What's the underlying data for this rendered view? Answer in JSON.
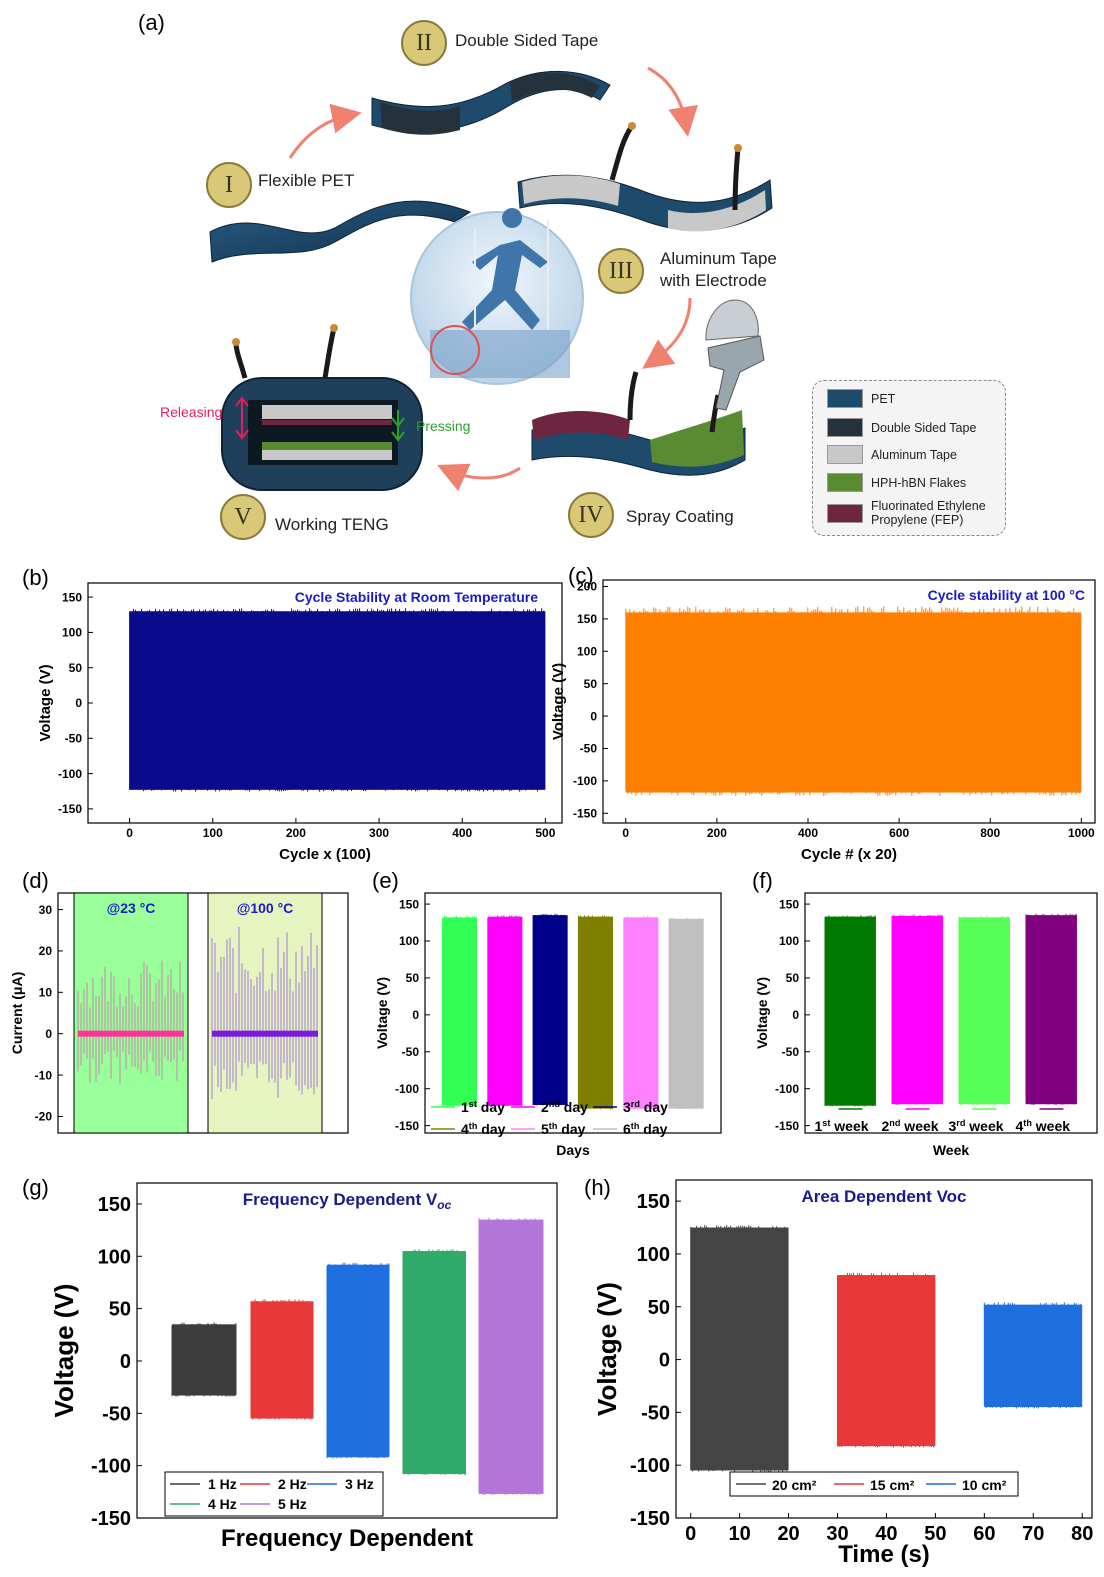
{
  "figure": {
    "panel_letters": [
      "(a)",
      "(b)",
      "(c)",
      "(d)",
      "(e)",
      "(f)",
      "(g)",
      "(h)"
    ],
    "steps": [
      {
        "numeral": "I",
        "label": "Flexible PET"
      },
      {
        "numeral": "II",
        "label": "Double Sided Tape"
      },
      {
        "numeral": "III",
        "label": "Aluminum Tape\nwith Electrode"
      },
      {
        "numeral": "IV",
        "label": "Spray Coating"
      },
      {
        "numeral": "V",
        "label": "Working TENG"
      }
    ],
    "annotations": {
      "releasing": "Releasing",
      "pressing": "Pressing"
    },
    "legend": [
      {
        "label": "PET",
        "color": "#1e4a6b"
      },
      {
        "label": "Double Sided Tape",
        "color": "#26323b"
      },
      {
        "label": "Aluminum Tape",
        "color": "#c8c8c8"
      },
      {
        "label": "HPH-hBN Flakes",
        "color": "#5a8a32"
      },
      {
        "label": "Fluorinated Ethylene\nPropylene (FEP)",
        "color": "#6e2540"
      }
    ],
    "colors": {
      "pet": "#1e4a6b",
      "tape": "#26323b",
      "aluminum": "#c8c8c8",
      "hbn": "#5a8a32",
      "fep": "#6e2540",
      "arrow": "#f08070",
      "badge": "#d9c878"
    }
  },
  "chart_data": [
    {
      "panel": "(b)",
      "type": "line",
      "title": "Cycle Stability at Room Temperature",
      "title_color": "#1a1acc",
      "xlabel": "Cycle x (100)",
      "ylabel": "Voltage (V)",
      "xlim": [
        -50,
        520
      ],
      "ylim": [
        -170,
        170
      ],
      "xticks": [
        0,
        100,
        200,
        300,
        400,
        500
      ],
      "yticks": [
        -150,
        -100,
        -50,
        0,
        50,
        100,
        150
      ],
      "series": [
        {
          "color": "#0a0a8c",
          "x_range": [
            0,
            500
          ],
          "upper": 130,
          "lower": -123,
          "envelope": "band"
        }
      ]
    },
    {
      "panel": "(c)",
      "type": "line",
      "title": "Cycle stability at 100 °C",
      "title_color": "#1a1acc",
      "xlabel": "Cycle # (x 20)",
      "ylabel": "Voltage (V)",
      "xlim": [
        -50,
        1030
      ],
      "ylim": [
        -165,
        210
      ],
      "xticks": [
        0,
        200,
        400,
        600,
        800,
        1000
      ],
      "yticks": [
        -150,
        -100,
        -50,
        0,
        50,
        100,
        150,
        200
      ],
      "series": [
        {
          "color": "#ff7f00",
          "x_range": [
            0,
            1000
          ],
          "upper": 160,
          "lower": -118,
          "envelope": "band"
        }
      ]
    },
    {
      "panel": "(d)",
      "type": "line",
      "xlabel": "",
      "ylabel": "Current (μA)",
      "ylim": [
        -24,
        34
      ],
      "yticks": [
        -20,
        -10,
        0,
        10,
        20,
        30
      ],
      "regions": [
        {
          "label": "@23 °C",
          "bg": "#99ff99",
          "line_color": "#c78ab0",
          "center_color": "#ff3399",
          "upper": 18,
          "lower": -12
        },
        {
          "label": "@100 °C",
          "bg": "#e6f5c0",
          "line_color": "#a77cd9",
          "center_color": "#7a1adf",
          "upper": 26,
          "lower": -16
        }
      ]
    },
    {
      "panel": "(e)",
      "type": "bar",
      "xlabel": "Days",
      "ylabel": "Voltage (V)",
      "ylim": [
        -160,
        165
      ],
      "yticks": [
        -150,
        -100,
        -50,
        0,
        50,
        100,
        150
      ],
      "series": [
        {
          "name": "1st day",
          "color": "#33ff55",
          "upper": 132,
          "lower": -123
        },
        {
          "name": "2nd day",
          "color": "#ff00ff",
          "upper": 133,
          "lower": -123
        },
        {
          "name": "3rd day",
          "color": "#00008b",
          "upper": 135,
          "lower": -122
        },
        {
          "name": "4th day",
          "color": "#808000",
          "upper": 133,
          "lower": -127
        },
        {
          "name": "5th day",
          "color": "#ff80ff",
          "upper": 132,
          "lower": -127
        },
        {
          "name": "6th day",
          "color": "#c0c0c0",
          "upper": 130,
          "lower": -127
        }
      ]
    },
    {
      "panel": "(f)",
      "type": "bar",
      "xlabel": "Week",
      "ylabel": "Voltage (V)",
      "ylim": [
        -160,
        165
      ],
      "yticks": [
        -150,
        -100,
        -50,
        0,
        50,
        100,
        150
      ],
      "series": [
        {
          "name": "1st week",
          "color": "#007a00",
          "upper": 133,
          "lower": -123
        },
        {
          "name": "2nd week",
          "color": "#ff00ff",
          "upper": 134,
          "lower": -121
        },
        {
          "name": "3rd week",
          "color": "#55ff55",
          "upper": 132,
          "lower": -121
        },
        {
          "name": "4th week",
          "color": "#800080",
          "upper": 135,
          "lower": -121
        }
      ]
    },
    {
      "panel": "(g)",
      "type": "bar",
      "title": "Frequency Dependent V",
      "title_sub": "oc",
      "title_color": "#1a1a8c",
      "xlabel": "Frequency Dependent",
      "ylabel": "Voltage (V)",
      "ylim": [
        -150,
        170
      ],
      "yticks": [
        -150,
        -100,
        -50,
        0,
        50,
        100,
        150
      ],
      "series": [
        {
          "name": "1 Hz",
          "color": "#3c3c3c",
          "upper": 35,
          "lower": -33
        },
        {
          "name": "2 Hz",
          "color": "#e83838",
          "upper": 57,
          "lower": -55
        },
        {
          "name": "3 Hz",
          "color": "#1f6fe0",
          "upper": 92,
          "lower": -92
        },
        {
          "name": "4 Hz",
          "color": "#2faa6a",
          "upper": 105,
          "lower": -108
        },
        {
          "name": "5 Hz",
          "color": "#b276db",
          "upper": 135,
          "lower": -127
        }
      ]
    },
    {
      "panel": "(h)",
      "type": "bar",
      "title": "Area Dependent Voc",
      "title_color": "#1a1a8c",
      "xlabel": "Time (s)",
      "ylabel": "Voltage (V)",
      "xlim": [
        -3,
        82
      ],
      "ylim": [
        -150,
        170
      ],
      "xticks": [
        0,
        10,
        20,
        30,
        40,
        50,
        60,
        70,
        80
      ],
      "yticks": [
        -150,
        -100,
        -50,
        0,
        50,
        100,
        150
      ],
      "series": [
        {
          "name": "20 cm²",
          "color": "#444444",
          "x_range": [
            0,
            20
          ],
          "upper": 125,
          "lower": -105
        },
        {
          "name": "15 cm²",
          "color": "#e83838",
          "x_range": [
            30,
            50
          ],
          "upper": 80,
          "lower": -82
        },
        {
          "name": "10 cm²",
          "color": "#1f6fe0",
          "x_range": [
            60,
            80
          ],
          "upper": 52,
          "lower": -45
        }
      ]
    }
  ]
}
